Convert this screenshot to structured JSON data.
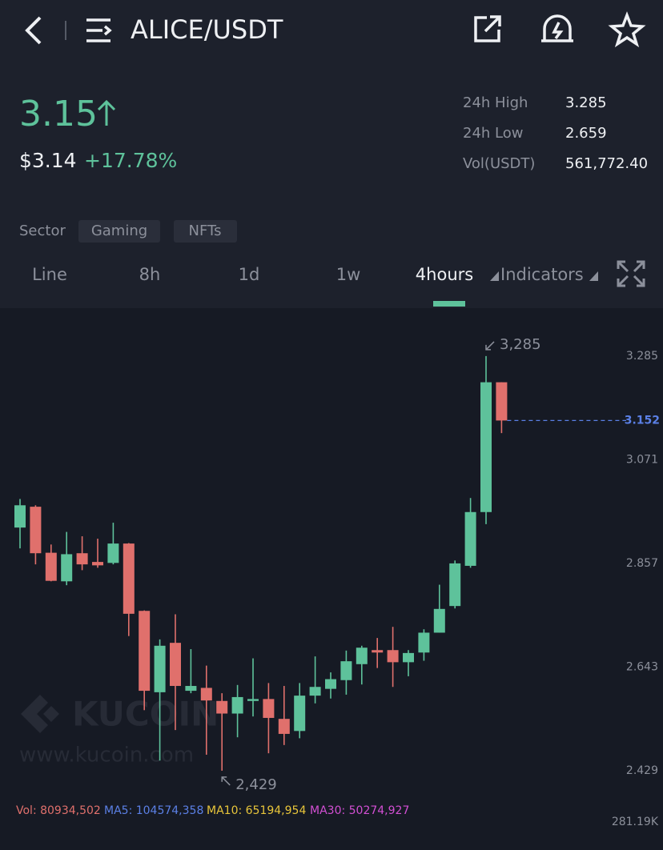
{
  "header": {
    "title": "ALICE/USDT"
  },
  "ticker": {
    "price": "3.15",
    "usd_price": "$3.14",
    "change": "+17.78%",
    "stats": [
      {
        "label": "24h High",
        "value": "3.285"
      },
      {
        "label": "24h Low",
        "value": "2.659"
      },
      {
        "label": "Vol(USDT)",
        "value": "561,772.40"
      }
    ]
  },
  "sector": {
    "label": "Sector",
    "tags": [
      "Gaming",
      "NFTs"
    ]
  },
  "tabs": [
    "Line",
    "8h",
    "1d",
    "1w",
    "4hours",
    "Indicators"
  ],
  "watermark": {
    "brand": "KUCOIN",
    "url": "www.kucoin.com"
  },
  "indicators": [
    {
      "text": "Vol: 80934,502",
      "color": "#e0706c"
    },
    {
      "text": "MA5: 104574,358",
      "color": "#5b80e6"
    },
    {
      "text": "MA10: 65194,954",
      "color": "#e8c53a"
    },
    {
      "text": "MA30: 50274,927",
      "color": "#d24fd3"
    }
  ],
  "volume_axis_label": "281.19K",
  "chart_data": {
    "type": "candlestick",
    "open": [
      2.931,
      2.974,
      2.879,
      2.82,
      2.878,
      2.86,
      2.858,
      2.898,
      2.759,
      2.591,
      2.693,
      2.594,
      2.6,
      2.573,
      2.547,
      2.573,
      2.577,
      2.536,
      2.511,
      2.584,
      2.598,
      2.616,
      2.649,
      2.678,
      2.678,
      2.653,
      2.673,
      2.714,
      2.769,
      2.852,
      2.963,
      3.231
    ],
    "high": [
      2.99,
      2.977,
      2.896,
      2.922,
      2.913,
      2.908,
      2.941,
      2.899,
      2.76,
      2.7,
      2.752,
      2.68,
      2.646,
      2.589,
      2.606,
      2.661,
      2.61,
      2.604,
      2.61,
      2.665,
      2.632,
      2.677,
      2.687,
      2.703,
      2.726,
      2.678,
      2.721,
      2.813,
      2.863,
      2.992,
      3.285,
      3.231
    ],
    "low": [
      2.888,
      2.855,
      2.82,
      2.812,
      2.843,
      2.848,
      2.855,
      2.707,
      2.554,
      2.45,
      2.513,
      2.589,
      2.462,
      2.429,
      2.498,
      2.541,
      2.465,
      2.482,
      2.496,
      2.568,
      2.578,
      2.586,
      2.607,
      2.641,
      2.602,
      2.624,
      2.656,
      2.714,
      2.764,
      2.848,
      2.938,
      3.126
    ],
    "close": [
      2.977,
      2.878,
      2.821,
      2.876,
      2.855,
      2.853,
      2.898,
      2.753,
      2.594,
      2.687,
      2.604,
      2.604,
      2.574,
      2.547,
      2.581,
      2.577,
      2.538,
      2.505,
      2.584,
      2.602,
      2.618,
      2.655,
      2.683,
      2.673,
      2.653,
      2.672,
      2.714,
      2.763,
      2.857,
      2.963,
      3.231,
      3.152
    ],
    "up_color": "#5ec29b",
    "down_color": "#e0706c",
    "ylim": [
      2.376,
      3.384
    ],
    "yticks": [
      2.429,
      2.643,
      2.857,
      3.071,
      3.285
    ],
    "last_price": 3.152,
    "last_price_color": "#5b80e6",
    "high_annotation": "3,285",
    "low_annotation": "2,429",
    "grid": false
  }
}
